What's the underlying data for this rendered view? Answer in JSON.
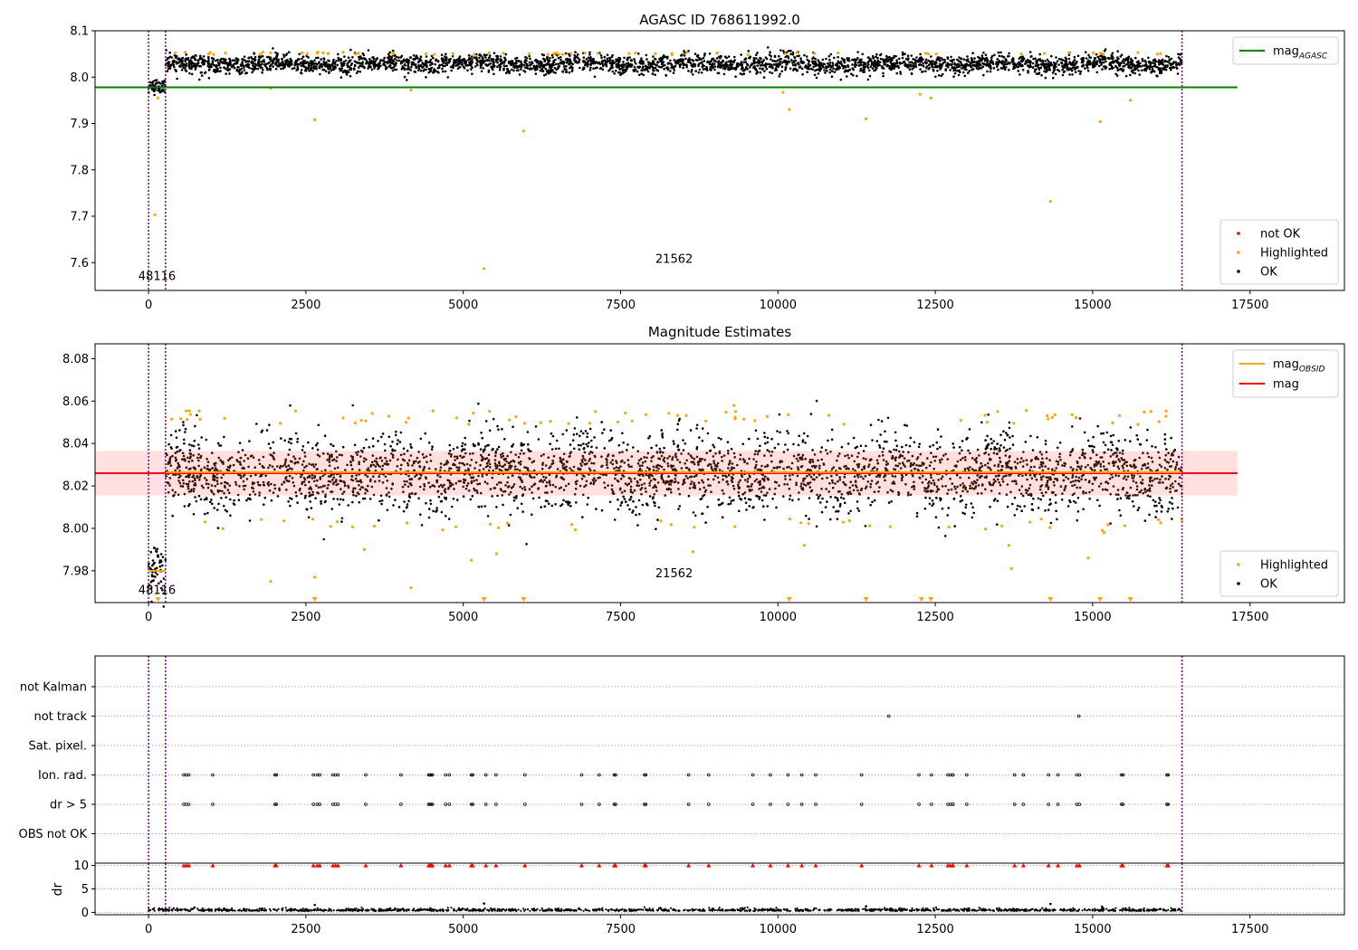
{
  "chart_data": [
    {
      "type": "scatter",
      "title": "AGASC ID 768611992.0",
      "xlabel": "",
      "ylabel": "",
      "xlim": [
        -850,
        19000
      ],
      "ylim": [
        7.54,
        8.1
      ],
      "xticks": [
        0,
        2500,
        5000,
        7500,
        10000,
        12500,
        15000,
        17500
      ],
      "yticks": [
        7.6,
        7.7,
        7.8,
        7.9,
        8.0,
        8.1
      ],
      "grid": false,
      "vlines": [
        0,
        270,
        16420
      ],
      "obsid_labels": [
        {
          "text": "48116",
          "x": 135,
          "y": 7.562
        },
        {
          "text": "21562",
          "x": 8350,
          "y": 7.6
        }
      ],
      "mag_agasc": 7.978,
      "mag_agasc_xrange": [
        -850,
        17300
      ],
      "segments": [
        {
          "x": [
            0,
            270
          ],
          "center": 7.98,
          "spread": 0.008
        },
        {
          "x": [
            270,
            16420
          ],
          "center": 8.028,
          "spread": 0.01
        }
      ],
      "highlighted_points": [
        {
          "x": 100,
          "y": 7.703
        },
        {
          "x": 150,
          "y": 7.955
        },
        {
          "x": 2640,
          "y": 7.908
        },
        {
          "x": 5330,
          "y": 7.587
        },
        {
          "x": 5960,
          "y": 7.884
        },
        {
          "x": 10180,
          "y": 7.93
        },
        {
          "x": 11400,
          "y": 7.91
        },
        {
          "x": 14330,
          "y": 7.732
        },
        {
          "x": 15120,
          "y": 7.904
        },
        {
          "x": 15600,
          "y": 7.95
        },
        {
          "x": 12430,
          "y": 7.955
        },
        {
          "x": 10080,
          "y": 7.967
        },
        {
          "x": 1940,
          "y": 7.976
        },
        {
          "x": 4170,
          "y": 7.972
        },
        {
          "x": 12260,
          "y": 7.963
        }
      ],
      "legend_lines": {
        "position": "upper-right",
        "entries": [
          {
            "label": "mag",
            "sub": "AGASC",
            "color": "#008000"
          }
        ]
      },
      "legend_points": {
        "position": "lower-right",
        "entries": [
          {
            "label": "not OK",
            "color": "#ff0000"
          },
          {
            "label": "Highlighted",
            "color": "#ffa500"
          },
          {
            "label": "OK",
            "color": "#000000"
          }
        ]
      }
    },
    {
      "type": "scatter",
      "title": "Magnitude Estimates",
      "xlabel": "",
      "ylabel": "",
      "xlim": [
        -850,
        19000
      ],
      "ylim": [
        7.965,
        8.087
      ],
      "xticks": [
        0,
        2500,
        5000,
        7500,
        10000,
        12500,
        15000,
        17500
      ],
      "yticks": [
        7.98,
        8.0,
        8.02,
        8.04,
        8.06,
        8.08
      ],
      "grid": false,
      "vlines": [
        0,
        270,
        16420
      ],
      "obsid_labels": [
        {
          "text": "48116",
          "x": 135,
          "y": 7.969
        },
        {
          "text": "21562",
          "x": 8350,
          "y": 7.977
        }
      ],
      "mag": 8.026,
      "mag_band": [
        8.0155,
        8.0365
      ],
      "mag_xrange": [
        -850,
        17300
      ],
      "mag_obsid": [
        {
          "x": [
            0,
            270
          ],
          "value": 7.98
        },
        {
          "x": [
            270,
            16420
          ],
          "value": 8.0265
        }
      ],
      "segments": [
        {
          "x": [
            0,
            270
          ],
          "center": 7.98,
          "spread": 0.006
        },
        {
          "x": [
            270,
            16420
          ],
          "center": 8.026,
          "spread": 0.009
        }
      ],
      "highlighted_points": [
        {
          "x": 1940,
          "y": 7.975
        },
        {
          "x": 2640,
          "y": 7.977
        },
        {
          "x": 3430,
          "y": 7.99
        },
        {
          "x": 4170,
          "y": 7.972
        },
        {
          "x": 5130,
          "y": 7.985
        },
        {
          "x": 5530,
          "y": 7.988
        },
        {
          "x": 8650,
          "y": 7.989
        },
        {
          "x": 10420,
          "y": 7.992
        },
        {
          "x": 13710,
          "y": 7.981
        },
        {
          "x": 14930,
          "y": 7.986
        },
        {
          "x": 13670,
          "y": 7.992
        },
        {
          "x": 9300,
          "y": 8.058
        },
        {
          "x": 15180,
          "y": 7.998
        },
        {
          "x": 900,
          "y": 8.003
        }
      ],
      "offscale_points_x": [
        150,
        2640,
        5330,
        5960,
        10180,
        11400,
        12280,
        12430,
        14330,
        15120,
        15600
      ],
      "legend_lines": {
        "position": "upper-right",
        "entries": [
          {
            "label": "mag",
            "sub": "OBSID",
            "color": "#ffa500"
          },
          {
            "label": "mag",
            "sub": "",
            "color": "#ff0000"
          }
        ]
      },
      "legend_points": {
        "position": "lower-right",
        "entries": [
          {
            "label": "Highlighted",
            "color": "#ffa500"
          },
          {
            "label": "OK",
            "color": "#000000"
          }
        ]
      }
    },
    {
      "type": "scatter",
      "title": "",
      "xlabel": "",
      "ylabel": "",
      "xlim": [
        -850,
        19000
      ],
      "categories": [
        "not Kalman",
        "not track",
        "Sat. pixel.",
        "Ion. rad.",
        "dr > 5",
        "OBS not OK"
      ],
      "grid": true,
      "vlines": [
        0,
        270,
        16420
      ],
      "flags": {
        "not track": [
          11760,
          14780
        ],
        "Ion. rad.": [
          560,
          600,
          640,
          1020,
          2010,
          2030,
          2620,
          2680,
          2720,
          2930,
          2970,
          3010,
          3450,
          4010,
          4450,
          4470,
          4490,
          4510,
          4720,
          4780,
          5130,
          5150,
          5360,
          5520,
          5980,
          6880,
          7160,
          7400,
          7420,
          7880,
          7900,
          8580,
          8900,
          9600,
          9880,
          10160,
          10380,
          10600,
          11330,
          12240,
          12440,
          12700,
          12740,
          12780,
          12780,
          13000,
          13760,
          13900,
          14300,
          14450,
          14750,
          14790,
          15460,
          15480,
          16180,
          16200
        ]
      }
    },
    {
      "type": "scatter",
      "title": "",
      "xlabel": "",
      "ylabel": "dr",
      "xlim": [
        -850,
        19000
      ],
      "ylim": [
        -0.5,
        10.5
      ],
      "xticks": [
        0,
        2500,
        5000,
        7500,
        10000,
        12500,
        15000,
        17500
      ],
      "yticks": [
        0,
        5,
        10
      ],
      "grid": true,
      "vlines": [
        0,
        270,
        16420
      ],
      "dr_center": 0.3,
      "dr_outliers": [
        {
          "x": 2640,
          "y": 1.6
        },
        {
          "x": 5330,
          "y": 1.9
        },
        {
          "x": 14330,
          "y": 1.8
        },
        {
          "x": 15150,
          "y": 1.2
        },
        {
          "x": 11400,
          "y": 1.3
        }
      ],
      "clipped_marker_y": 10,
      "clipped_marker_color": "#ff0000"
    }
  ]
}
